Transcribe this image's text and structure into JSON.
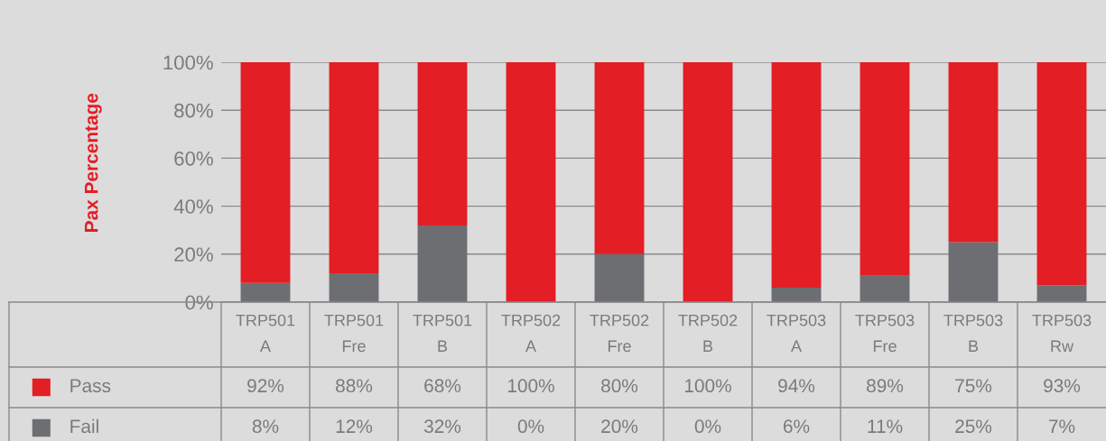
{
  "chart_data": {
    "type": "bar",
    "stacked": true,
    "ylabel": "Pax Percentage",
    "categories": [
      "TRP501\nA",
      "TRP501\nFre",
      "TRP501\nB",
      "TRP502\nA",
      "TRP502\nFre",
      "TRP502\nB",
      "TRP503\nA",
      "TRP503\nFre",
      "TRP503\nB",
      "TRP503\nRw"
    ],
    "series": [
      {
        "name": "Fail",
        "color": "#6d6e71",
        "values": [
          8,
          12,
          32,
          0,
          20,
          0,
          6,
          11,
          25,
          7
        ],
        "value_labels": [
          "8%",
          "12%",
          "32%",
          "0%",
          "20%",
          "0%",
          "6%",
          "11%",
          "25%",
          "7%"
        ]
      },
      {
        "name": "Pass",
        "color": "#e31e24",
        "values": [
          92,
          88,
          68,
          100,
          80,
          100,
          94,
          89,
          75,
          93
        ],
        "value_labels": [
          "92%",
          "88%",
          "68%",
          "100%",
          "80%",
          "100%",
          "94%",
          "89%",
          "75%",
          "93%"
        ]
      }
    ],
    "ylim": [
      0,
      100
    ],
    "yticks": [
      {
        "value": 0,
        "label": "0%"
      },
      {
        "value": 20,
        "label": "20%"
      },
      {
        "value": 40,
        "label": "40%"
      },
      {
        "value": 60,
        "label": "60%"
      },
      {
        "value": 80,
        "label": "80%"
      },
      {
        "value": 100,
        "label": "100%"
      }
    ],
    "grid": "y",
    "legend": "bottom"
  }
}
